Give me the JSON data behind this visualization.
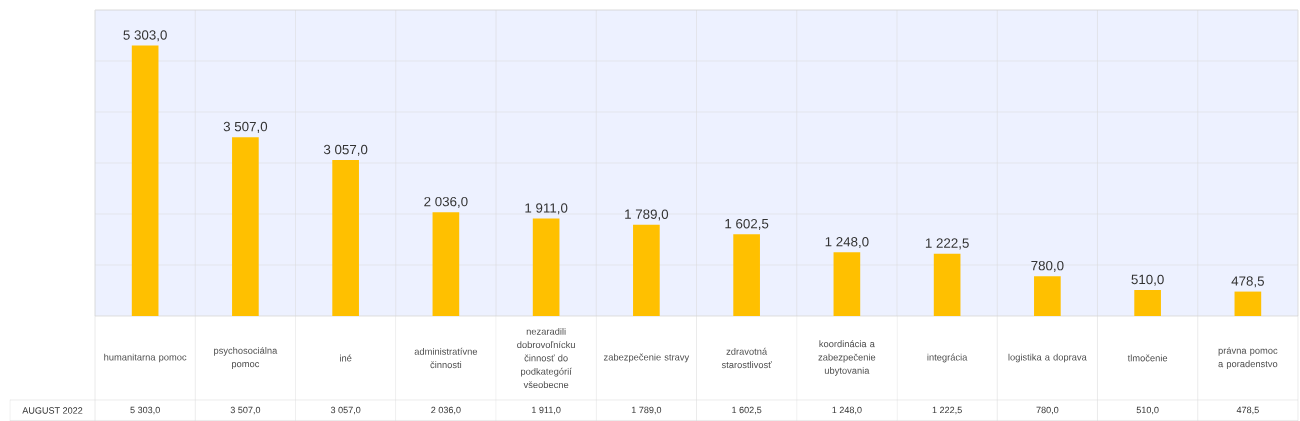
{
  "chart_data": {
    "type": "bar",
    "categories": [
      "humanitarna pomoc",
      "psychosociálna pomoc",
      "iné",
      "administratívne činnosti",
      "nezaradili dobrovoľnícku činnosť do podkategórií všeobecne",
      "zabezpečenie stravy",
      "zdravotná starostlivosť",
      "koordinácia a zabezpečenie ubytovania",
      "integrácia",
      "logistika a doprava",
      "tlmočenie",
      "právna pomoc a poradenstvo"
    ],
    "series": [
      {
        "name": "AUGUST 2022",
        "color": "#ffc000",
        "values": [
          5303.0,
          3507.0,
          3057.0,
          2036.0,
          1911.0,
          1789.0,
          1602.5,
          1248.0,
          1222.5,
          780.0,
          510.0,
          478.5
        ],
        "value_labels": [
          "5 303,0",
          "3 507,0",
          "3 057,0",
          "2 036,0",
          "1 911,0",
          "1 789,0",
          "1 602,5",
          "1 248,0",
          "1 222,5",
          "780,0",
          "510,0",
          "478,5"
        ]
      }
    ],
    "ylim": [
      0,
      6000
    ],
    "yticks": [
      {
        "value": 0,
        "label": null
      },
      {
        "value": 1000,
        "label": null
      },
      {
        "value": 2000,
        "label": null
      },
      {
        "value": 3000,
        "label": null
      },
      {
        "value": 4000,
        "label": null
      },
      {
        "value": 5000,
        "label": null
      },
      {
        "value": 6000,
        "label": null
      }
    ],
    "grid": true,
    "tick_labels": "x"
  }
}
